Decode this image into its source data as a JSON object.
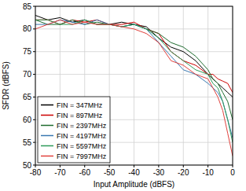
{
  "chart_data": {
    "type": "line",
    "x_label": "Input Amplitude (dBFS)",
    "y_label": "SFDR (dBFS)",
    "x": [
      -80,
      -75,
      -70,
      -65,
      -60,
      -55,
      -50,
      -45,
      -40,
      -35,
      -30,
      -25,
      -20,
      -15,
      -10,
      -8,
      -6,
      -4,
      -2,
      0
    ],
    "series": [
      {
        "name": "FIN = 347MHz",
        "color": "#000000",
        "values": [
          83,
          82,
          82.5,
          81.5,
          82,
          81,
          81,
          81.5,
          81,
          80.5,
          78,
          76,
          75,
          73,
          70,
          69,
          68,
          67,
          66,
          65
        ]
      },
      {
        "name": "FIN = 897MHz",
        "color": "#cc0000",
        "values": [
          82,
          82,
          81,
          82,
          81.5,
          82,
          81,
          81,
          81.5,
          80,
          79,
          75,
          73,
          72,
          70,
          70,
          69,
          68.5,
          68,
          66
        ]
      },
      {
        "name": "FIN = 2397MHz",
        "color": "#1e6b2e",
        "values": [
          82,
          81,
          81,
          82,
          81,
          81.5,
          81,
          80.5,
          81,
          80,
          79,
          77,
          76,
          74,
          71,
          69,
          68,
          66,
          64,
          60
        ]
      },
      {
        "name": "FIN = 4197MHz",
        "color": "#3a78b0",
        "values": [
          81,
          81,
          82,
          81.5,
          81,
          82,
          81,
          80.5,
          81,
          80,
          77,
          74,
          71,
          70,
          68,
          67,
          66,
          64,
          60,
          56
        ]
      },
      {
        "name": "FIN = 5597MHz",
        "color": "#2e9b5a",
        "values": [
          82,
          82,
          81,
          81,
          82,
          81,
          81,
          80.5,
          81,
          80,
          78,
          75,
          73,
          71,
          70,
          68,
          67,
          64,
          60,
          55
        ]
      },
      {
        "name": "FIN = 7997MHz",
        "color": "#e0403c",
        "values": [
          80,
          81,
          82,
          81,
          81.5,
          81,
          81,
          80.5,
          80,
          79,
          77,
          73,
          72,
          70,
          69,
          67,
          65,
          62,
          57,
          52
        ]
      }
    ],
    "xlim": [
      -80,
      0
    ],
    "ylim": [
      50,
      85
    ],
    "xticks": [
      -80,
      -70,
      -60,
      -50,
      -40,
      -30,
      -20,
      -10,
      0
    ],
    "yticks": [
      50,
      55,
      60,
      65,
      70,
      75,
      80,
      85
    ],
    "grid": true,
    "legend": "bottom-left"
  }
}
